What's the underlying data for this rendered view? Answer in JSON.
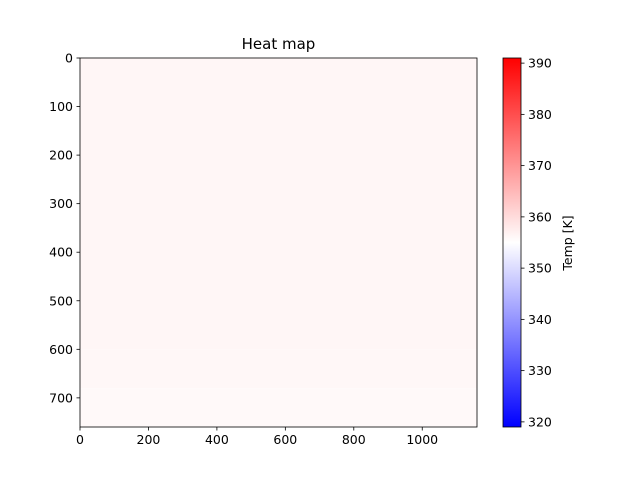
{
  "chart_data": {
    "type": "heatmap",
    "title": "Heat map",
    "xlabel": "",
    "ylabel": "",
    "xlim": [
      0,
      1160
    ],
    "ylim": [
      760,
      0
    ],
    "x_ticks": [
      "0",
      "200",
      "400",
      "600",
      "800",
      "1000"
    ],
    "y_ticks": [
      "0",
      "100",
      "200",
      "300",
      "400",
      "500",
      "600",
      "700"
    ],
    "colorbar": {
      "label": "Temp [K]",
      "range": [
        319,
        391
      ],
      "ticks": [
        "320",
        "330",
        "340",
        "350",
        "360",
        "370",
        "380",
        "390"
      ],
      "colormap": "bwr"
    },
    "grid": false,
    "values_note": "",
    "field": {
      "base_temperature": 356,
      "regions": [
        {
          "x0": 0,
          "x1": 1160,
          "y0": 0,
          "y1": 600,
          "temp": 356.3
        },
        {
          "x0": 0,
          "x1": 1160,
          "y0": 600,
          "y1": 680,
          "temp": 356.1
        },
        {
          "x0": 0,
          "x1": 1160,
          "y0": 680,
          "y1": 760,
          "temp": 355.9
        },
        {
          "x0": 380,
          "x1": 790,
          "y0": 690,
          "y1": 740,
          "temp": 355.8
        }
      ]
    }
  }
}
